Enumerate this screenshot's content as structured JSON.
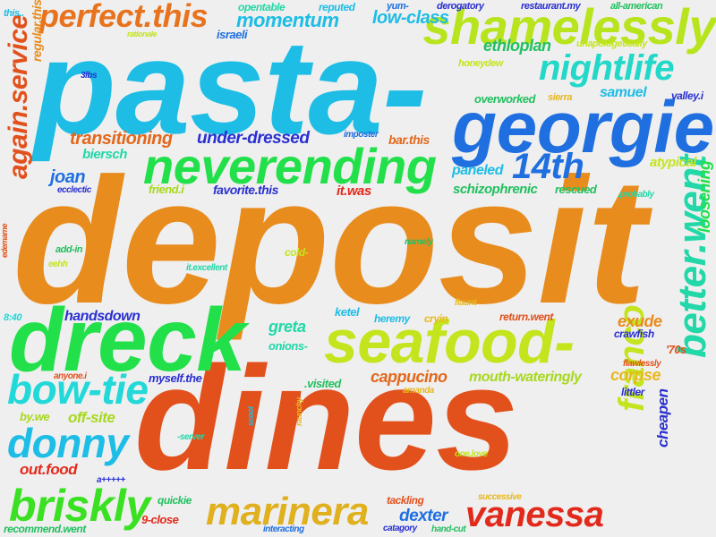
{
  "words": [
    {
      "text": "deposit",
      "color": "#e88c1e"
    },
    {
      "text": "pasta-",
      "color": "#1dbde6"
    },
    {
      "text": "dines",
      "color": "#e2511c"
    },
    {
      "text": "dreck",
      "color": "#22e04a"
    },
    {
      "text": "seafood-",
      "color": "#c4e41e"
    },
    {
      "text": "georgie",
      "color": "#1f6fe0"
    },
    {
      "text": "neverending",
      "color": "#22e04a"
    },
    {
      "text": "shamelessly",
      "color": "#b8e41e"
    },
    {
      "text": "perfect.this",
      "color": "#e8731e"
    },
    {
      "text": "nightlife",
      "color": "#22d8c8"
    },
    {
      "text": "bow-tie",
      "color": "#22d8d8"
    },
    {
      "text": "donny",
      "color": "#1dbde6"
    },
    {
      "text": "briskly",
      "color": "#3ae022"
    },
    {
      "text": "marinera",
      "color": "#e0b01e"
    },
    {
      "text": "vanessa",
      "color": "#e22a1c"
    },
    {
      "text": "franco",
      "color": "#c4e41e"
    },
    {
      "text": "better.went",
      "color": "#22d8a8"
    },
    {
      "text": "again.service",
      "color": "#e2511c"
    },
    {
      "text": "14th",
      "color": "#1f6fe0"
    },
    {
      "text": "momentum",
      "color": "#1dbde6"
    },
    {
      "text": "low-class",
      "color": "#1dbde6"
    },
    {
      "text": "transitioning",
      "color": "#e2681c"
    },
    {
      "text": "under-dressed",
      "color": "#2a30d0"
    },
    {
      "text": "ethloplan",
      "color": "#22c060"
    },
    {
      "text": "samuel",
      "color": "#1dbde6"
    },
    {
      "text": "joan",
      "color": "#1f6fe0"
    },
    {
      "text": "biersch",
      "color": "#22d8a8"
    },
    {
      "text": "paneled",
      "color": "#1dbde6"
    },
    {
      "text": "schizophrenic",
      "color": "#22c060"
    },
    {
      "text": "greta",
      "color": "#22d8a8"
    },
    {
      "text": "cappucino",
      "color": "#e2681c"
    },
    {
      "text": "mouth-wateringly",
      "color": "#a8d81e"
    },
    {
      "text": "corpse",
      "color": "#e8b81e"
    },
    {
      "text": "exude",
      "color": "#e88c1e"
    },
    {
      "text": "handsdown",
      "color": "#2a30d0"
    },
    {
      "text": "off-site",
      "color": "#a8d81e"
    },
    {
      "text": "out.food",
      "color": "#e22a1c"
    },
    {
      "text": "dexter",
      "color": "#1f6fe0"
    },
    {
      "text": "loosening",
      "color": "#22e04a"
    },
    {
      "text": "cheapen",
      "color": "#2a30d0"
    },
    {
      "text": "regular.this",
      "color": "#e88c1e"
    },
    {
      "text": "atypical",
      "color": "#c4e41e"
    },
    {
      "text": "favorite.this",
      "color": "#2a30d0"
    },
    {
      "text": "it.was",
      "color": "#e22a1c"
    },
    {
      "text": "rescued",
      "color": "#22c060"
    },
    {
      "text": "friend.i",
      "color": "#a8d81e"
    },
    {
      "text": "bar.this",
      "color": "#e2681c"
    },
    {
      "text": "israeli",
      "color": "#1f6fe0"
    },
    {
      "text": "opentable",
      "color": "#22d8a8"
    },
    {
      "text": "reputed",
      "color": "#1dbde6"
    },
    {
      "text": "yum-",
      "color": "#1f6fe0"
    },
    {
      "text": "derogatory",
      "color": "#2a30d0"
    },
    {
      "text": "restaurant.my",
      "color": "#2a30d0"
    },
    {
      "text": "all-american",
      "color": "#22c060"
    },
    {
      "text": "this..",
      "color": "#1dbde6"
    },
    {
      "text": "unapologetically",
      "color": "#c4e41e"
    },
    {
      "text": "honeydew",
      "color": "#c4e41e"
    },
    {
      "text": "overworked",
      "color": "#22c060"
    },
    {
      "text": "sierra",
      "color": "#e8b81e"
    },
    {
      "text": "valley.i",
      "color": "#2a30d0"
    },
    {
      "text": "rationale",
      "color": "#c4e41e"
    },
    {
      "text": "3lbs",
      "color": "#2a30d0"
    },
    {
      "text": "imposter",
      "color": "#1f6fe0"
    },
    {
      "text": "ecclectic",
      "color": "#2a30d0"
    },
    {
      "text": ".probably",
      "color": "#22d8a8"
    },
    {
      "text": "add-in",
      "color": "#22c060"
    },
    {
      "text": "eehh",
      "color": "#c4e41e"
    },
    {
      "text": "edemame",
      "color": "#e2511c"
    },
    {
      "text": "namely",
      "color": "#22c060"
    },
    {
      "text": "cold-",
      "color": "#c4e41e"
    },
    {
      "text": "it.excellent",
      "color": "#22d8a8"
    },
    {
      "text": "8:40",
      "color": "#22d8d8"
    },
    {
      "text": "ketel",
      "color": "#1dbde6"
    },
    {
      "text": "heremy",
      "color": "#1dbde6"
    },
    {
      "text": "cryin",
      "color": "#e8b81e"
    },
    {
      "text": "return.went",
      "color": "#e2511c"
    },
    {
      "text": "flaunt",
      "color": "#e8b81e"
    },
    {
      "text": "crawfish",
      "color": "#2a30d0"
    },
    {
      "text": "'70s",
      "color": "#e2511c"
    },
    {
      "text": "flawlessly",
      "color": "#e2511c"
    },
    {
      "text": "onions-",
      "color": "#22d8a8"
    },
    {
      "text": ".visited",
      "color": "#22c060"
    },
    {
      "text": "myself.the",
      "color": "#2a30d0"
    },
    {
      "text": "anyone.i",
      "color": "#e2511c"
    },
    {
      "text": "amanda",
      "color": "#e8b81e"
    },
    {
      "text": "littler",
      "color": "#2a30d0"
    },
    {
      "text": "by.we",
      "color": "#a8d81e"
    },
    {
      "text": "-server",
      "color": "#22d8a8"
    },
    {
      "text": "scoot",
      "color": "#1dbde6"
    },
    {
      "text": "raunchy",
      "color": "#e8b81e"
    },
    {
      "text": "one.love",
      "color": "#c4e41e"
    },
    {
      "text": "a+++++",
      "color": "#2a30d0"
    },
    {
      "text": "quickie",
      "color": "#22c060"
    },
    {
      "text": "tackling",
      "color": "#e2511c"
    },
    {
      "text": "successive",
      "color": "#e8b81e"
    },
    {
      "text": "9-close",
      "color": "#e22a1c"
    },
    {
      "text": "recommend.went",
      "color": "#22c060"
    },
    {
      "text": "interacting",
      "color": "#1f6fe0"
    },
    {
      "text": "catagory",
      "color": "#2a30d0"
    },
    {
      "text": "hand-cut",
      "color": "#22c060"
    }
  ]
}
